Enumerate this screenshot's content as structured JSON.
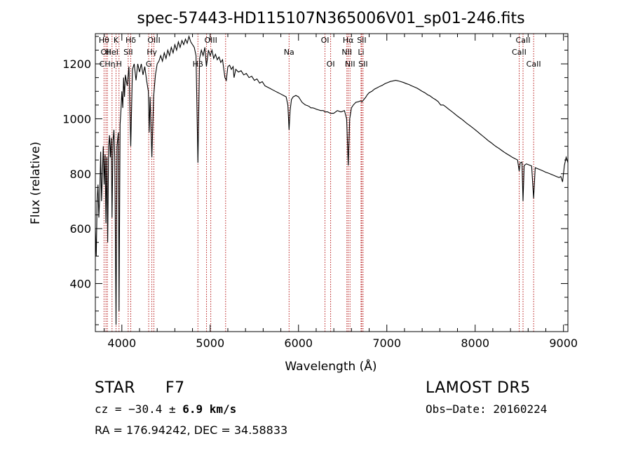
{
  "chart_data": {
    "type": "line",
    "title": "spec-57443-HD115107N365006V01_sp01-246.fits",
    "xlabel": "Wavelength (Å)",
    "ylabel": "Flux (relative)",
    "xlim": [
      3700,
      9050
    ],
    "ylim": [
      225,
      1310
    ],
    "xticks": [
      4000,
      5000,
      6000,
      7000,
      8000,
      9000
    ],
    "yticks": [
      400,
      600,
      800,
      1000,
      1200
    ],
    "grid": false,
    "series": [
      {
        "values": [
          [
            3700,
            600
          ],
          [
            3710,
            500
          ],
          [
            3720,
            700
          ],
          [
            3730,
            760
          ],
          [
            3740,
            640
          ],
          [
            3750,
            720
          ],
          [
            3760,
            880
          ],
          [
            3770,
            700
          ],
          [
            3780,
            800
          ],
          [
            3790,
            900
          ],
          [
            3800,
            760
          ],
          [
            3810,
            870
          ],
          [
            3820,
            620
          ],
          [
            3830,
            860
          ],
          [
            3840,
            550
          ],
          [
            3850,
            900
          ],
          [
            3860,
            940
          ],
          [
            3870,
            860
          ],
          [
            3880,
            930
          ],
          [
            3889,
            640
          ],
          [
            3900,
            920
          ],
          [
            3910,
            960
          ],
          [
            3920,
            860
          ],
          [
            3934,
            250
          ],
          [
            3945,
            900
          ],
          [
            3960,
            950
          ],
          [
            3968,
            300
          ],
          [
            3980,
            980
          ],
          [
            3990,
            1030
          ],
          [
            4000,
            1100
          ],
          [
            4010,
            1040
          ],
          [
            4020,
            1150
          ],
          [
            4030,
            1080
          ],
          [
            4040,
            1160
          ],
          [
            4060,
            1120
          ],
          [
            4080,
            1190
          ],
          [
            4101,
            900
          ],
          [
            4120,
            1180
          ],
          [
            4140,
            1200
          ],
          [
            4160,
            1140
          ],
          [
            4180,
            1200
          ],
          [
            4200,
            1170
          ],
          [
            4220,
            1200
          ],
          [
            4240,
            1160
          ],
          [
            4260,
            1190
          ],
          [
            4280,
            1140
          ],
          [
            4300,
            1100
          ],
          [
            4310,
            950
          ],
          [
            4320,
            1080
          ],
          [
            4340,
            860
          ],
          [
            4360,
            1080
          ],
          [
            4380,
            1160
          ],
          [
            4400,
            1200
          ],
          [
            4420,
            1210
          ],
          [
            4440,
            1230
          ],
          [
            4460,
            1210
          ],
          [
            4480,
            1240
          ],
          [
            4500,
            1220
          ],
          [
            4520,
            1250
          ],
          [
            4540,
            1230
          ],
          [
            4560,
            1260
          ],
          [
            4580,
            1240
          ],
          [
            4600,
            1270
          ],
          [
            4620,
            1250
          ],
          [
            4640,
            1280
          ],
          [
            4660,
            1260
          ],
          [
            4680,
            1285
          ],
          [
            4700,
            1270
          ],
          [
            4720,
            1290
          ],
          [
            4740,
            1275
          ],
          [
            4760,
            1300
          ],
          [
            4780,
            1280
          ],
          [
            4800,
            1270
          ],
          [
            4820,
            1260
          ],
          [
            4840,
            1230
          ],
          [
            4861,
            840
          ],
          [
            4880,
            1220
          ],
          [
            4900,
            1250
          ],
          [
            4920,
            1230
          ],
          [
            4940,
            1260
          ],
          [
            4957,
            1190
          ],
          [
            4980,
            1250
          ],
          [
            5000,
            1230
          ],
          [
            5020,
            1250
          ],
          [
            5040,
            1220
          ],
          [
            5060,
            1235
          ],
          [
            5080,
            1215
          ],
          [
            5100,
            1225
          ],
          [
            5120,
            1205
          ],
          [
            5140,
            1215
          ],
          [
            5167,
            1150
          ],
          [
            5183,
            1140
          ],
          [
            5200,
            1190
          ],
          [
            5220,
            1195
          ],
          [
            5240,
            1180
          ],
          [
            5260,
            1190
          ],
          [
            5270,
            1150
          ],
          [
            5290,
            1180
          ],
          [
            5320,
            1170
          ],
          [
            5350,
            1175
          ],
          [
            5380,
            1160
          ],
          [
            5410,
            1165
          ],
          [
            5440,
            1150
          ],
          [
            5470,
            1155
          ],
          [
            5500,
            1140
          ],
          [
            5530,
            1145
          ],
          [
            5560,
            1130
          ],
          [
            5590,
            1135
          ],
          [
            5620,
            1120
          ],
          [
            5650,
            1115
          ],
          [
            5680,
            1110
          ],
          [
            5710,
            1105
          ],
          [
            5740,
            1100
          ],
          [
            5770,
            1095
          ],
          [
            5800,
            1090
          ],
          [
            5830,
            1085
          ],
          [
            5860,
            1080
          ],
          [
            5880,
            1050
          ],
          [
            5893,
            960
          ],
          [
            5905,
            1030
          ],
          [
            5920,
            1070
          ],
          [
            5940,
            1080
          ],
          [
            5970,
            1085
          ],
          [
            6000,
            1080
          ],
          [
            6020,
            1070
          ],
          [
            6040,
            1060
          ],
          [
            6060,
            1055
          ],
          [
            6080,
            1050
          ],
          [
            6100,
            1048
          ],
          [
            6120,
            1045
          ],
          [
            6140,
            1040
          ],
          [
            6160,
            1040
          ],
          [
            6180,
            1038
          ],
          [
            6200,
            1035
          ],
          [
            6220,
            1033
          ],
          [
            6250,
            1030
          ],
          [
            6280,
            1030
          ],
          [
            6300,
            1025
          ],
          [
            6330,
            1025
          ],
          [
            6360,
            1020
          ],
          [
            6400,
            1020
          ],
          [
            6440,
            1030
          ],
          [
            6480,
            1025
          ],
          [
            6520,
            1030
          ],
          [
            6545,
            1000
          ],
          [
            6563,
            830
          ],
          [
            6580,
            1000
          ],
          [
            6600,
            1040
          ],
          [
            6620,
            1050
          ],
          [
            6650,
            1060
          ],
          [
            6680,
            1062
          ],
          [
            6700,
            1065
          ],
          [
            6720,
            1062
          ],
          [
            6740,
            1070
          ],
          [
            6760,
            1078
          ],
          [
            6780,
            1088
          ],
          [
            6800,
            1095
          ],
          [
            6830,
            1100
          ],
          [
            6860,
            1108
          ],
          [
            6890,
            1113
          ],
          [
            6920,
            1118
          ],
          [
            6950,
            1122
          ],
          [
            6980,
            1128
          ],
          [
            7010,
            1132
          ],
          [
            7040,
            1136
          ],
          [
            7070,
            1138
          ],
          [
            7100,
            1140
          ],
          [
            7130,
            1138
          ],
          [
            7160,
            1135
          ],
          [
            7190,
            1132
          ],
          [
            7220,
            1128
          ],
          [
            7250,
            1125
          ],
          [
            7280,
            1120
          ],
          [
            7310,
            1116
          ],
          [
            7340,
            1112
          ],
          [
            7370,
            1106
          ],
          [
            7400,
            1100
          ],
          [
            7430,
            1095
          ],
          [
            7460,
            1088
          ],
          [
            7490,
            1083
          ],
          [
            7520,
            1076
          ],
          [
            7550,
            1070
          ],
          [
            7580,
            1063
          ],
          [
            7610,
            1050
          ],
          [
            7640,
            1050
          ],
          [
            7670,
            1043
          ],
          [
            7700,
            1035
          ],
          [
            7730,
            1028
          ],
          [
            7760,
            1020
          ],
          [
            7790,
            1012
          ],
          [
            7820,
            1005
          ],
          [
            7850,
            998
          ],
          [
            7880,
            990
          ],
          [
            7910,
            982
          ],
          [
            7940,
            975
          ],
          [
            7970,
            968
          ],
          [
            8000,
            960
          ],
          [
            8030,
            952
          ],
          [
            8060,
            944
          ],
          [
            8090,
            936
          ],
          [
            8120,
            928
          ],
          [
            8150,
            920
          ],
          [
            8180,
            913
          ],
          [
            8210,
            905
          ],
          [
            8240,
            898
          ],
          [
            8270,
            892
          ],
          [
            8300,
            885
          ],
          [
            8330,
            878
          ],
          [
            8360,
            872
          ],
          [
            8390,
            866
          ],
          [
            8420,
            860
          ],
          [
            8450,
            855
          ],
          [
            8480,
            850
          ],
          [
            8498,
            810
          ],
          [
            8510,
            840
          ],
          [
            8530,
            842
          ],
          [
            8542,
            700
          ],
          [
            8555,
            830
          ],
          [
            8580,
            836
          ],
          [
            8610,
            832
          ],
          [
            8640,
            828
          ],
          [
            8662,
            710
          ],
          [
            8680,
            822
          ],
          [
            8710,
            818
          ],
          [
            8740,
            814
          ],
          [
            8770,
            810
          ],
          [
            8800,
            805
          ],
          [
            8830,
            802
          ],
          [
            8860,
            798
          ],
          [
            8890,
            794
          ],
          [
            8920,
            790
          ],
          [
            8950,
            786
          ],
          [
            8970,
            790
          ],
          [
            8990,
            770
          ],
          [
            9010,
            830
          ],
          [
            9030,
            860
          ],
          [
            9050,
            840
          ]
        ]
      }
    ],
    "lines": [
      {
        "x": 3798,
        "label": "Hθ",
        "row": 1
      },
      {
        "x": 3820,
        "label": "OII",
        "row": 2
      },
      {
        "x": 3836,
        "label": "CHη",
        "row": 3
      },
      {
        "x": 3889,
        "label": "HeI",
        "row": 2
      },
      {
        "x": 3934,
        "label": "K",
        "row": 1
      },
      {
        "x": 3968,
        "label": "H",
        "row": 3
      },
      {
        "x": 4072,
        "label": "SII",
        "row": 2
      },
      {
        "x": 4101,
        "label": "Hδ",
        "row": 1
      },
      {
        "x": 4304,
        "label": "G",
        "row": 3
      },
      {
        "x": 4340,
        "label": "Hγ",
        "row": 2
      },
      {
        "x": 4363,
        "label": "OIII",
        "row": 1
      },
      {
        "x": 4861,
        "label": "Hβ",
        "row": 3
      },
      {
        "x": 4959,
        "label": "",
        "row": 1
      },
      {
        "x": 5007,
        "label": "OIII",
        "row": 1
      },
      {
        "x": 5175,
        "label": "",
        "row": 0
      },
      {
        "x": 5893,
        "label": "Na",
        "row": 2
      },
      {
        "x": 6300,
        "label": "OI",
        "row": 1
      },
      {
        "x": 6364,
        "label": "OI",
        "row": 3
      },
      {
        "x": 6548,
        "label": "NII",
        "row": 2
      },
      {
        "x": 6563,
        "label": "Hα",
        "row": 1
      },
      {
        "x": 6583,
        "label": "NII",
        "row": 3
      },
      {
        "x": 6708,
        "label": "Li",
        "row": 2
      },
      {
        "x": 6716,
        "label": "SII",
        "row": 1
      },
      {
        "x": 6731,
        "label": "SII",
        "row": 3
      },
      {
        "x": 8498,
        "label": "CaII",
        "row": 2
      },
      {
        "x": 8542,
        "label": "CaII",
        "row": 1
      },
      {
        "x": 8662,
        "label": "CaII",
        "row": 3
      }
    ]
  },
  "info": {
    "class_label": "STAR",
    "subclass": "F7",
    "survey": "LAMOST DR5",
    "cz_prefix": "cz = ",
    "cz_value": "−30.4",
    "cz_pm": " ± ",
    "cz_err": "6.9 km/s",
    "obs_date": "Obs−Date: 20160224",
    "coords": "RA = 176.94242, DEC =  34.58833"
  }
}
